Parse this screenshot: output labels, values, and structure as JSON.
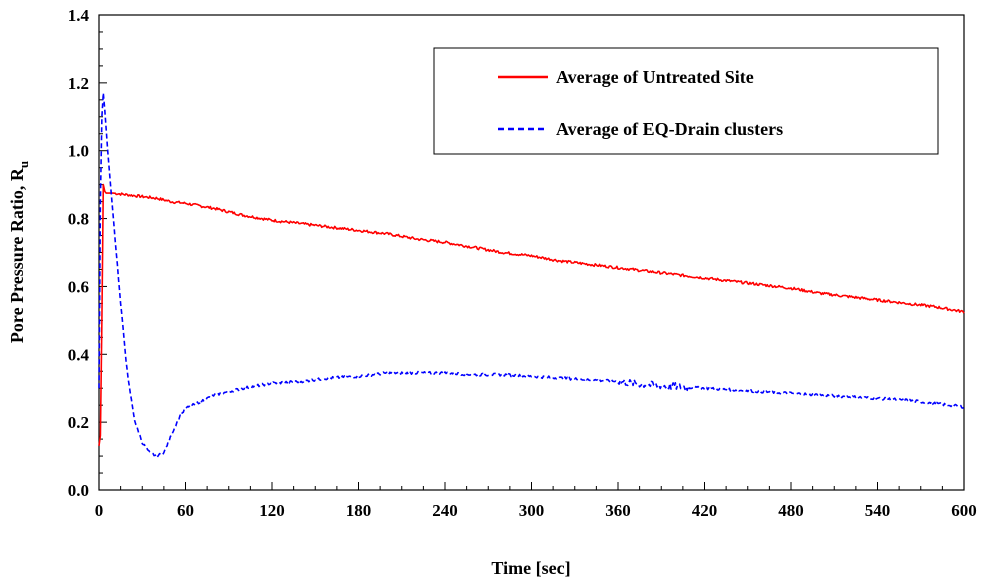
{
  "chart_data": {
    "type": "line",
    "title": "",
    "xlabel": "Time [sec]",
    "ylabel_main": "Pore Pressure Ratio, R",
    "ylabel_sub": "u",
    "xlim": [
      0,
      600
    ],
    "ylim": [
      0,
      1.4
    ],
    "x_ticks": [
      "0",
      "60",
      "120",
      "180",
      "240",
      "300",
      "360",
      "420",
      "480",
      "540",
      "600"
    ],
    "y_ticks": [
      "0.0",
      "0.2",
      "0.4",
      "0.6",
      "0.8",
      "1.0",
      "1.2",
      "1.4"
    ],
    "grid": false,
    "legend_position": "top-right",
    "series": [
      {
        "name": "Average of Untreated Site",
        "color": "#ff0000",
        "style": "solid",
        "x": [
          0,
          1,
          2,
          3,
          4,
          5,
          10,
          20,
          30,
          40,
          50,
          60,
          80,
          100,
          120,
          140,
          160,
          180,
          200,
          220,
          240,
          260,
          280,
          300,
          320,
          340,
          360,
          380,
          400,
          420,
          440,
          460,
          480,
          500,
          520,
          540,
          560,
          580,
          600
        ],
        "y": [
          0.13,
          0.16,
          0.5,
          0.9,
          0.88,
          0.875,
          0.875,
          0.87,
          0.865,
          0.86,
          0.85,
          0.845,
          0.83,
          0.81,
          0.795,
          0.785,
          0.775,
          0.765,
          0.755,
          0.74,
          0.73,
          0.715,
          0.7,
          0.69,
          0.675,
          0.665,
          0.655,
          0.645,
          0.635,
          0.625,
          0.615,
          0.605,
          0.595,
          0.58,
          0.57,
          0.56,
          0.55,
          0.54,
          0.525
        ]
      },
      {
        "name": "Average of EQ-Drain clusters",
        "color": "#0000ff",
        "style": "dashed",
        "x": [
          0,
          1,
          2,
          3,
          4,
          6,
          8,
          10,
          15,
          20,
          25,
          30,
          35,
          40,
          45,
          50,
          55,
          60,
          70,
          80,
          100,
          120,
          140,
          160,
          180,
          200,
          220,
          240,
          260,
          280,
          300,
          320,
          340,
          360,
          380,
          400,
          420,
          440,
          460,
          480,
          500,
          520,
          540,
          560,
          580,
          600
        ],
        "y": [
          0.3,
          0.85,
          1.1,
          1.17,
          1.12,
          1.0,
          0.9,
          0.8,
          0.55,
          0.33,
          0.2,
          0.14,
          0.11,
          0.1,
          0.11,
          0.16,
          0.21,
          0.24,
          0.26,
          0.28,
          0.3,
          0.315,
          0.32,
          0.33,
          0.335,
          0.345,
          0.345,
          0.345,
          0.34,
          0.34,
          0.335,
          0.33,
          0.325,
          0.32,
          0.31,
          0.305,
          0.3,
          0.295,
          0.29,
          0.285,
          0.28,
          0.275,
          0.27,
          0.265,
          0.255,
          0.245
        ]
      }
    ]
  }
}
